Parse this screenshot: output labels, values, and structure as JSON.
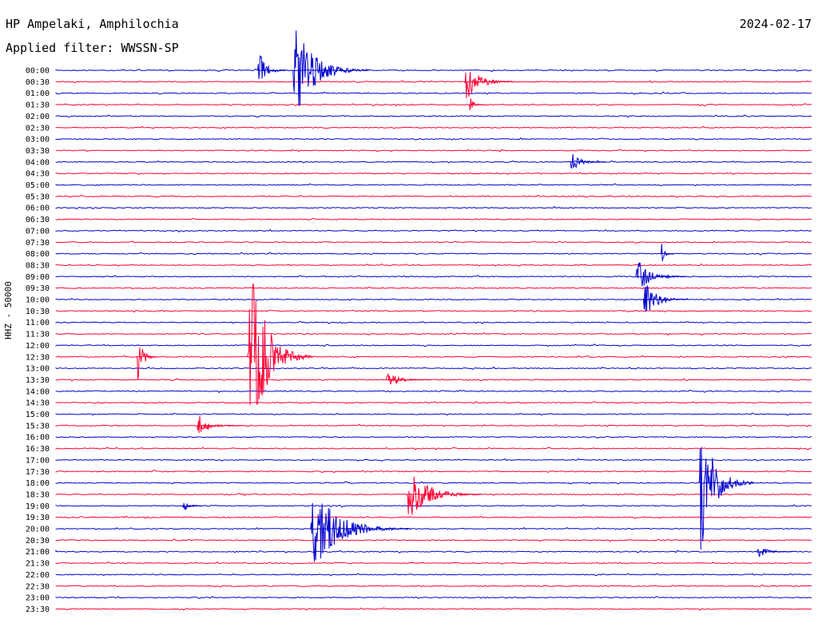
{
  "header": {
    "station": "HP Ampelaki, Amphilochia",
    "date": "2024-02-17",
    "filter": "Applied filter: WWSSN-SP"
  },
  "chart_data": {
    "type": "line",
    "title": "HP Ampelaki, Amphilochia",
    "date": "2024-02-17",
    "filter": "WWSSN-SP",
    "ylabel": "HHZ - 50000",
    "xlabel": "",
    "row_times": [
      "00:00",
      "00:30",
      "01:00",
      "01:30",
      "02:00",
      "02:30",
      "03:00",
      "03:30",
      "04:00",
      "04:30",
      "05:00",
      "05:30",
      "06:00",
      "06:30",
      "07:00",
      "07:30",
      "08:00",
      "08:30",
      "09:00",
      "09:30",
      "10:00",
      "10:30",
      "11:00",
      "11:30",
      "12:00",
      "12:30",
      "13:00",
      "13:30",
      "14:00",
      "14:30",
      "15:00",
      "15:30",
      "16:00",
      "16:30",
      "17:00",
      "17:30",
      "18:00",
      "18:30",
      "19:00",
      "19:30",
      "20:00",
      "20:30",
      "21:00",
      "21:30",
      "22:00",
      "22:30",
      "23:00",
      "23:30"
    ],
    "row_colors": [
      "#0000cc",
      "#ff0033"
    ],
    "minutes_per_row": 30,
    "events": [
      {
        "row": "00:00",
        "minute": 8.0,
        "amplitude": 30,
        "duration": 1.2,
        "color": "#0000cc"
      },
      {
        "row": "00:00",
        "minute": 9.4,
        "amplitude": 70,
        "duration": 3.0,
        "color": "#0000cc"
      },
      {
        "row": "00:30",
        "minute": 16.2,
        "amplitude": 30,
        "duration": 2.0,
        "color": "#ff0033"
      },
      {
        "row": "01:30",
        "minute": 16.4,
        "amplitude": 12,
        "duration": 0.6,
        "color": "#ff0033"
      },
      {
        "row": "04:00",
        "minute": 20.4,
        "amplitude": 14,
        "duration": 1.4,
        "color": "#0000cc"
      },
      {
        "row": "08:00",
        "minute": 24.0,
        "amplitude": 16,
        "duration": 0.5,
        "color": "#0000cc"
      },
      {
        "row": "09:00",
        "minute": 23.0,
        "amplitude": 26,
        "duration": 2.0,
        "color": "#0000cc"
      },
      {
        "row": "10:00",
        "minute": 23.3,
        "amplitude": 30,
        "duration": 1.8,
        "color": "#0000cc"
      },
      {
        "row": "12:30",
        "minute": 3.2,
        "amplitude": 45,
        "duration": 0.8,
        "color": "#ff0033"
      },
      {
        "row": "12:30",
        "minute": 7.6,
        "amplitude": 150,
        "duration": 2.6,
        "color": "#ff0033"
      },
      {
        "row": "13:30",
        "minute": 13.1,
        "amplitude": 12,
        "duration": 1.8,
        "color": "#ff0033"
      },
      {
        "row": "15:30",
        "minute": 5.6,
        "amplitude": 16,
        "duration": 1.8,
        "color": "#ff0033"
      },
      {
        "row": "18:00",
        "minute": 25.5,
        "amplitude": 100,
        "duration": 2.2,
        "color": "#0000cc"
      },
      {
        "row": "18:30",
        "minute": 13.9,
        "amplitude": 38,
        "duration": 3.0,
        "color": "#ff0033"
      },
      {
        "row": "19:00",
        "minute": 5.0,
        "amplitude": 12,
        "duration": 0.8,
        "color": "#0000cc"
      },
      {
        "row": "20:00",
        "minute": 10.1,
        "amplitude": 60,
        "duration": 4.0,
        "color": "#0000cc"
      },
      {
        "row": "21:00",
        "minute": 27.8,
        "amplitude": 10,
        "duration": 1.4,
        "color": "#0000cc"
      }
    ]
  }
}
